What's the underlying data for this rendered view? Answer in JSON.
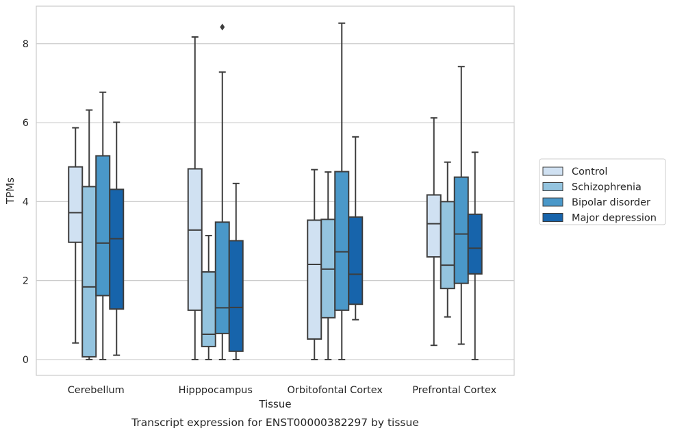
{
  "chart_data": {
    "type": "box",
    "caption": "Transcript expression for ENST00000382297 by tissue",
    "xlabel": "Tissue",
    "ylabel": "TPMs",
    "ylim": [
      -0.4,
      8.95
    ],
    "yticks": [
      0,
      2,
      4,
      6,
      8
    ],
    "grid": "horizontal",
    "legend_position": "right",
    "categories": [
      "Cerebellum",
      "Hipppocampus",
      "Orbitofontal Cortex",
      "Prefrontal Cortex"
    ],
    "series": [
      {
        "name": "Control",
        "color": "#d0e1f2",
        "boxes": [
          {
            "whisker_low": 0.42,
            "q1": 2.97,
            "median": 3.72,
            "q3": 4.88,
            "whisker_high": 5.87,
            "outliers": []
          },
          {
            "whisker_low": 0.0,
            "q1": 1.25,
            "median": 3.28,
            "q3": 4.83,
            "whisker_high": 8.17,
            "outliers": []
          },
          {
            "whisker_low": 0.0,
            "q1": 0.52,
            "median": 2.41,
            "q3": 3.53,
            "whisker_high": 4.81,
            "outliers": []
          },
          {
            "whisker_low": 0.36,
            "q1": 2.6,
            "median": 3.44,
            "q3": 4.17,
            "whisker_high": 6.12,
            "outliers": []
          }
        ]
      },
      {
        "name": "Schizophrenia",
        "color": "#94c4df",
        "boxes": [
          {
            "whisker_low": 0.0,
            "q1": 0.07,
            "median": 1.84,
            "q3": 4.38,
            "whisker_high": 6.32,
            "outliers": []
          },
          {
            "whisker_low": 0.0,
            "q1": 0.33,
            "median": 0.64,
            "q3": 2.22,
            "whisker_high": 3.14,
            "outliers": []
          },
          {
            "whisker_low": 0.0,
            "q1": 1.06,
            "median": 2.29,
            "q3": 3.55,
            "whisker_high": 4.75,
            "outliers": []
          },
          {
            "whisker_low": 1.08,
            "q1": 1.8,
            "median": 2.39,
            "q3": 4.0,
            "whisker_high": 5.0,
            "outliers": []
          }
        ]
      },
      {
        "name": "Bipolar disorder",
        "color": "#4a98c9",
        "boxes": [
          {
            "whisker_low": 0.0,
            "q1": 1.62,
            "median": 2.95,
            "q3": 5.16,
            "whisker_high": 6.77,
            "outliers": []
          },
          {
            "whisker_low": 0.0,
            "q1": 0.66,
            "median": 1.31,
            "q3": 3.48,
            "whisker_high": 7.28,
            "outliers": [
              8.42
            ]
          },
          {
            "whisker_low": 0.0,
            "q1": 1.25,
            "median": 2.73,
            "q3": 4.76,
            "whisker_high": 8.52,
            "outliers": []
          },
          {
            "whisker_low": 0.39,
            "q1": 1.93,
            "median": 3.18,
            "q3": 4.62,
            "whisker_high": 7.42,
            "outliers": []
          }
        ]
      },
      {
        "name": "Major depression",
        "color": "#1764ab",
        "boxes": [
          {
            "whisker_low": 0.11,
            "q1": 1.28,
            "median": 3.06,
            "q3": 4.31,
            "whisker_high": 6.01,
            "outliers": []
          },
          {
            "whisker_low": 0.0,
            "q1": 0.21,
            "median": 1.32,
            "q3": 3.01,
            "whisker_high": 4.46,
            "outliers": []
          },
          {
            "whisker_low": 1.01,
            "q1": 1.4,
            "median": 2.16,
            "q3": 3.61,
            "whisker_high": 5.64,
            "outliers": []
          },
          {
            "whisker_low": 0.0,
            "q1": 2.17,
            "median": 2.82,
            "q3": 3.68,
            "whisker_high": 5.25,
            "outliers": []
          }
        ]
      }
    ]
  }
}
